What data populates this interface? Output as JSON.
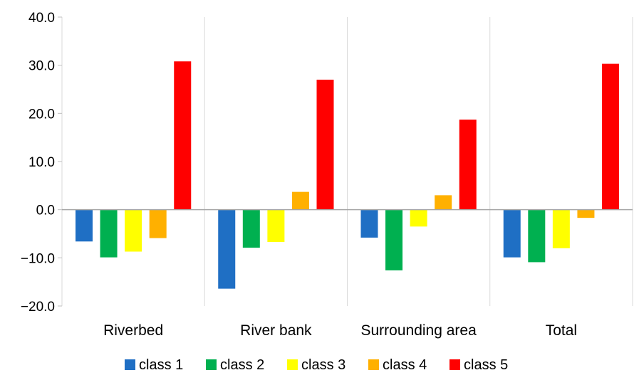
{
  "chart_data": {
    "type": "bar",
    "categories": [
      "Riverbed",
      "River bank",
      "Surrounding area",
      "Total"
    ],
    "series": [
      {
        "name": "class 1",
        "color": "#1f6fc4",
        "values": [
          -6.6,
          -16.4,
          -5.8,
          -9.9
        ]
      },
      {
        "name": "class 2",
        "color": "#00b050",
        "values": [
          -9.9,
          -7.9,
          -12.6,
          -10.9
        ]
      },
      {
        "name": "class 3",
        "color": "#ffff00",
        "values": [
          -8.7,
          -6.7,
          -3.5,
          -8.0
        ]
      },
      {
        "name": "class 4",
        "color": "#ffb000",
        "values": [
          -5.9,
          3.7,
          3.0,
          -1.7
        ]
      },
      {
        "name": "class 5",
        "color": "#ff0000",
        "values": [
          30.8,
          27.0,
          18.7,
          30.3
        ]
      }
    ],
    "ylim": [
      -20,
      40
    ],
    "yticks": [
      -20,
      -10,
      0,
      10,
      20,
      30,
      40
    ],
    "ytick_labels": [
      "−20.0",
      "−10.0",
      "0.0",
      "10.0",
      "20.0",
      "30.0",
      "40.0"
    ],
    "grid": "vertical category separators",
    "legend": "bottom"
  }
}
